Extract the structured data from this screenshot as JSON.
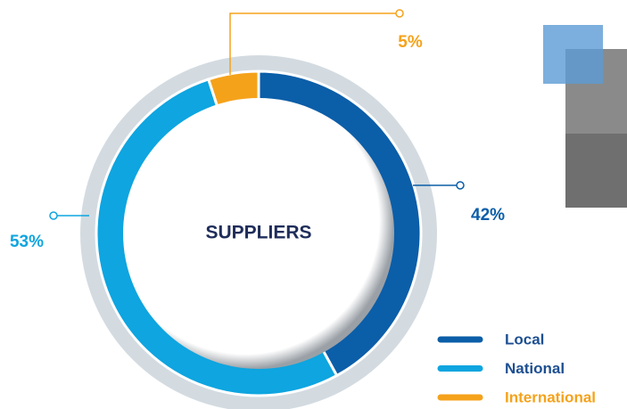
{
  "chart_data": {
    "type": "pie",
    "title": "SUPPLIERS",
    "series": [
      {
        "name": "Local",
        "color": "#0b5ea8",
        "values": [
          42
        ],
        "value_labels": [
          "42%"
        ]
      },
      {
        "name": "National",
        "color": "#0ea5e0",
        "values": [
          53
        ],
        "value_labels": [
          "53%"
        ]
      },
      {
        "name": "International",
        "color": "#f5a21b",
        "values": [
          5
        ],
        "value_labels": [
          "5%"
        ]
      }
    ]
  }
}
